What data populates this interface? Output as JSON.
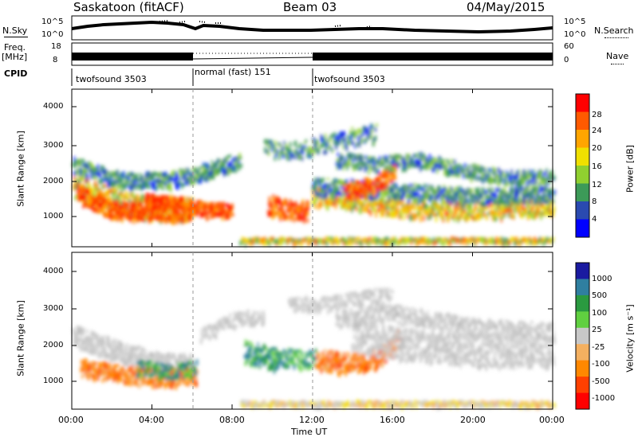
{
  "header": {
    "station": "Saskatoon (fitACF)",
    "beam": "Beam 03",
    "date": "04/May/2015"
  },
  "strip": {
    "nsky_label": "N.Sky",
    "nsky_ticks": [
      "10^5",
      "10^0"
    ],
    "nsearch_label": "N.Search",
    "freq_label": "Freq.",
    "freq_unit": "[MHz]",
    "freq_ticks": [
      "18",
      "8"
    ],
    "nave_ticks": [
      "60",
      "0"
    ],
    "nave_label": "Nave",
    "cpid_label": "CPID",
    "cpid_segments": [
      "twofsound 3503",
      "normal (fast) 151",
      "twofsound 3503"
    ]
  },
  "chart_data": [
    {
      "type": "heatmap",
      "title": "Power",
      "ylabel": "Slant Range [km]",
      "xlabel": "",
      "ylim": [
        180,
        4500
      ],
      "yticks": [
        "4000",
        "3000",
        "2000",
        "1000"
      ],
      "colorbar": {
        "label": "Power [dB]",
        "ticks": [
          "28",
          "24",
          "20",
          "16",
          "12",
          "8",
          "4"
        ],
        "colors": [
          "#ff0000",
          "#ff5a00",
          "#ffa500",
          "#f0e000",
          "#90d030",
          "#3c9a58",
          "#2a4ab0",
          "#0000ff"
        ]
      }
    },
    {
      "type": "heatmap",
      "title": "Velocity",
      "ylabel": "Slant Range [km]",
      "xlabel": "Time UT",
      "ylim": [
        180,
        4500
      ],
      "yticks": [
        "4000",
        "3000",
        "2000",
        "1000"
      ],
      "xticks": [
        "00:00",
        "04:00",
        "08:00",
        "12:00",
        "16:00",
        "20:00",
        "00:00"
      ],
      "colorbar": {
        "label": "Velocity [m s⁻¹]",
        "ticks": [
          "1000",
          "500",
          "100",
          "25",
          "-25",
          "-100",
          "-500",
          "-1000"
        ],
        "colors": [
          "#1a1aa0",
          "#2f7fa0",
          "#2a9a40",
          "#60d040",
          "#c8c8c8",
          "#f4b060",
          "#ff8800",
          "#ff4000",
          "#ff0000"
        ]
      }
    }
  ]
}
